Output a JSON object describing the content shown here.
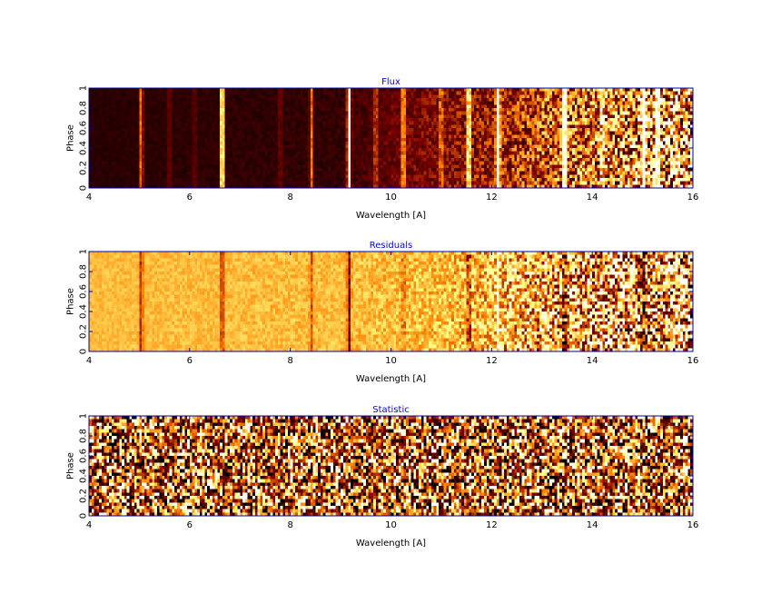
{
  "chart_data": [
    {
      "type": "heatmap",
      "title": "Flux",
      "xlabel": "Wavelength [A]",
      "ylabel": "Phase",
      "xlim": [
        4,
        16
      ],
      "ylim": [
        0,
        1
      ],
      "xticks": [
        4,
        6,
        8,
        10,
        12,
        14,
        16
      ],
      "yticks": [
        0,
        0.2,
        0.4,
        0.6,
        0.8,
        1
      ],
      "ytick_labels": [
        "0",
        "0.2",
        "0.4",
        "0.6",
        "0.8",
        "1"
      ],
      "colormap": "afmhot",
      "background_level": [
        [
          4,
          0.08
        ],
        [
          9,
          0.1
        ],
        [
          10,
          0.2
        ],
        [
          12,
          0.3
        ],
        [
          13.3,
          0.45
        ],
        [
          16,
          0.6
        ]
      ],
      "noise_level": [
        [
          4,
          0.02
        ],
        [
          9,
          0.05
        ],
        [
          11,
          0.12
        ],
        [
          13,
          0.3
        ],
        [
          16,
          0.55
        ]
      ],
      "emission_lines": [
        {
          "wavelength": 5.04,
          "strength": 0.45
        },
        {
          "wavelength": 5.6,
          "strength": 0.15
        },
        {
          "wavelength": 6.1,
          "strength": 0.12
        },
        {
          "wavelength": 6.65,
          "strength": 1.0
        },
        {
          "wavelength": 7.8,
          "strength": 0.15
        },
        {
          "wavelength": 8.42,
          "strength": 0.4
        },
        {
          "wavelength": 9.17,
          "strength": 1.0
        },
        {
          "wavelength": 9.7,
          "strength": 0.3
        },
        {
          "wavelength": 10.25,
          "strength": 0.45
        },
        {
          "wavelength": 11.0,
          "strength": 0.3
        },
        {
          "wavelength": 11.55,
          "strength": 0.7
        },
        {
          "wavelength": 12.13,
          "strength": 1.0
        },
        {
          "wavelength": 13.45,
          "strength": 1.0
        },
        {
          "wavelength": 14.2,
          "strength": 0.35
        },
        {
          "wavelength": 15.02,
          "strength": 1.0
        },
        {
          "wavelength": 15.3,
          "strength": 0.8
        }
      ]
    },
    {
      "type": "heatmap",
      "title": "Residuals",
      "xlabel": "Wavelength [A]",
      "ylabel": "Phase",
      "xlim": [
        4,
        16
      ],
      "ylim": [
        0,
        1
      ],
      "xticks": [
        4,
        6,
        8,
        10,
        12,
        14,
        16
      ],
      "yticks": [
        0,
        0.2,
        0.4,
        0.6,
        0.8,
        1
      ],
      "ytick_labels": [
        "0",
        "0.2",
        "0.4",
        "0.6",
        "0.8",
        "1"
      ],
      "colormap": "afmhot",
      "background_level": [
        [
          4,
          0.62
        ],
        [
          16,
          0.62
        ]
      ],
      "noise_level": [
        [
          4,
          0.05
        ],
        [
          9,
          0.08
        ],
        [
          11,
          0.15
        ],
        [
          12.2,
          0.3
        ],
        [
          13.3,
          0.45
        ],
        [
          16,
          0.6
        ]
      ],
      "emission_lines": [
        {
          "wavelength": 5.04,
          "strength": -0.3
        },
        {
          "wavelength": 6.65,
          "strength": -0.3
        },
        {
          "wavelength": 8.42,
          "strength": -0.2
        },
        {
          "wavelength": 9.17,
          "strength": -0.4
        },
        {
          "wavelength": 10.25,
          "strength": -0.15
        },
        {
          "wavelength": 11.55,
          "strength": -0.25
        },
        {
          "wavelength": 12.13,
          "strength": 0.3
        },
        {
          "wavelength": 13.45,
          "strength": -0.45
        },
        {
          "wavelength": 15.02,
          "strength": -0.45
        }
      ]
    },
    {
      "type": "heatmap",
      "title": "Statistic",
      "xlabel": "Wavelength [A]",
      "ylabel": "Phase",
      "xlim": [
        4,
        16
      ],
      "ylim": [
        0,
        1
      ],
      "xticks": [
        4,
        6,
        8,
        10,
        12,
        14,
        16
      ],
      "yticks": [
        0,
        0.2,
        0.4,
        0.6,
        0.8,
        1
      ],
      "ytick_labels": [
        "0",
        "0.2",
        "0.4",
        "0.6",
        "0.8",
        "1"
      ],
      "colormap": "afmhot",
      "background_level": [
        [
          4,
          0.35
        ],
        [
          16,
          0.35
        ]
      ],
      "noise_level": [
        [
          4,
          0.7
        ],
        [
          16,
          0.7
        ]
      ],
      "emission_lines": []
    }
  ],
  "colors": {
    "title": "#0000ff",
    "frame": "#0000aa",
    "text": "#000000"
  }
}
